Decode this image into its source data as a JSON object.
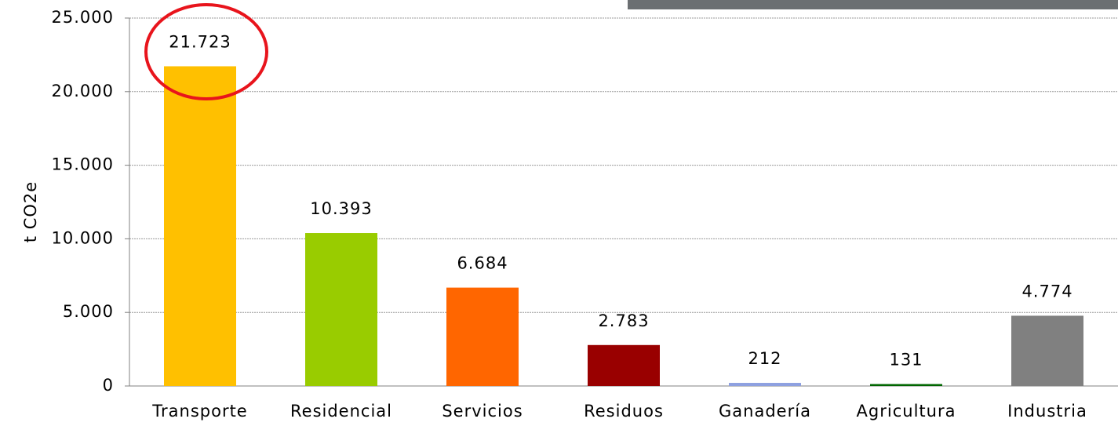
{
  "chart_data": {
    "type": "bar",
    "y_label": "t CO2e",
    "categories": [
      "Transporte",
      "Residencial",
      "Servicios",
      "Residuos",
      "Ganadería",
      "Agricultura",
      "Industria"
    ],
    "values": [
      21723,
      10393,
      6684,
      2783,
      212,
      131,
      4774
    ],
    "value_labels": [
      "21.723",
      "10.393",
      "6.684",
      "2.783",
      "212",
      "131",
      "4.774"
    ],
    "colors": [
      "#ffc000",
      "#99cc00",
      "#ff6600",
      "#990000",
      "#8ea0e0",
      "#006600",
      "#808080"
    ],
    "ylim": [
      0,
      25000
    ],
    "yticks": [
      0,
      {
        "value": 5000,
        "label": "5.000"
      },
      {
        "value": 10000,
        "label": "10.000"
      },
      {
        "value": 15000,
        "label": "15.000"
      },
      {
        "value": 20000,
        "label": "20.000"
      },
      {
        "value": 25000,
        "label": "25.000"
      }
    ],
    "grid": true
  }
}
